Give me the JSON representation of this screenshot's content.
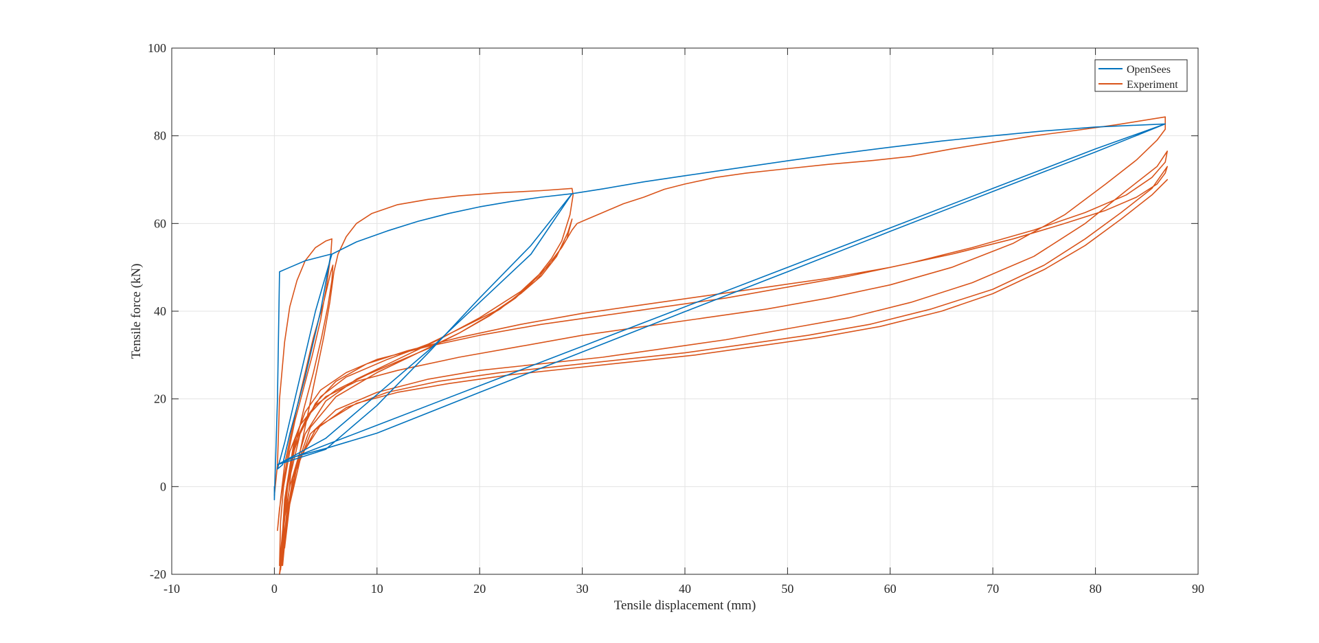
{
  "chart_data": {
    "type": "line",
    "title": "",
    "xlabel": "Tensile displacement (mm)",
    "ylabel": "Tensile force (kN)",
    "xlim": [
      -10,
      90
    ],
    "ylim": [
      -20,
      100
    ],
    "xticks": [
      -10,
      0,
      10,
      20,
      30,
      40,
      50,
      60,
      70,
      80,
      90
    ],
    "yticks": [
      -20,
      0,
      20,
      40,
      60,
      80,
      100
    ],
    "grid": true,
    "legend_position": "top-right",
    "series": [
      {
        "name": "OpenSees",
        "color": "#0072BD",
        "points": [
          [
            0,
            0
          ],
          [
            0,
            -3
          ],
          [
            0.3,
            20
          ],
          [
            0.5,
            49
          ],
          [
            1.5,
            50
          ],
          [
            3,
            51.5
          ],
          [
            5.5,
            53
          ],
          [
            4.5,
            40
          ],
          [
            3,
            25
          ],
          [
            1.5,
            12
          ],
          [
            0.8,
            5
          ],
          [
            0.3,
            4
          ],
          [
            1,
            10
          ],
          [
            2.5,
            25
          ],
          [
            4,
            40
          ],
          [
            5.6,
            53
          ],
          [
            8,
            55.8
          ],
          [
            11,
            58.3
          ],
          [
            14,
            60.5
          ],
          [
            17,
            62.3
          ],
          [
            20,
            63.8
          ],
          [
            23,
            65
          ],
          [
            26,
            66
          ],
          [
            29,
            66.8
          ],
          [
            25,
            55
          ],
          [
            20,
            43
          ],
          [
            15,
            30.5
          ],
          [
            10,
            18.5
          ],
          [
            5,
            8.5
          ],
          [
            1,
            5.5
          ],
          [
            0.3,
            5
          ],
          [
            5,
            11
          ],
          [
            10,
            21
          ],
          [
            15,
            31
          ],
          [
            20,
            42
          ],
          [
            25,
            53
          ],
          [
            29,
            66.8
          ],
          [
            32,
            67.9
          ],
          [
            36,
            69.5
          ],
          [
            40,
            70.9
          ],
          [
            45,
            72.6
          ],
          [
            50,
            74.3
          ],
          [
            55,
            75.9
          ],
          [
            60,
            77.4
          ],
          [
            65,
            78.8
          ],
          [
            70,
            80
          ],
          [
            75,
            81.1
          ],
          [
            80,
            82
          ],
          [
            86.8,
            82.7
          ],
          [
            80,
            76.3
          ],
          [
            70,
            67.3
          ],
          [
            60,
            58.2
          ],
          [
            50,
            49
          ],
          [
            40,
            39.9
          ],
          [
            30,
            30.7
          ],
          [
            20,
            21.5
          ],
          [
            10,
            12.2
          ],
          [
            5,
            8.7
          ],
          [
            2,
            6.8
          ],
          [
            0.3,
            5
          ],
          [
            2,
            6.8
          ],
          [
            10,
            14
          ],
          [
            20,
            23
          ],
          [
            30,
            32
          ],
          [
            40,
            41
          ],
          [
            50,
            50
          ],
          [
            60,
            59
          ],
          [
            70,
            68
          ],
          [
            80,
            77
          ],
          [
            86.8,
            82.7
          ]
        ]
      },
      {
        "name": "Experiment",
        "color": "#D95319",
        "points": [
          [
            0,
            -2
          ],
          [
            0.3,
            5
          ],
          [
            0.5,
            20
          ],
          [
            1,
            33
          ],
          [
            1.5,
            41
          ],
          [
            2.2,
            47
          ],
          [
            3,
            51.5
          ],
          [
            4,
            54.5
          ],
          [
            5,
            56
          ],
          [
            5.6,
            56.5
          ],
          [
            5.5,
            53
          ],
          [
            5.1,
            46
          ],
          [
            4.5,
            38
          ],
          [
            3.7,
            30
          ],
          [
            2.8,
            22
          ],
          [
            2,
            15
          ],
          [
            1.3,
            7
          ],
          [
            0.8,
            0
          ],
          [
            0.5,
            -5
          ],
          [
            0.3,
            -10
          ],
          [
            0.6,
            -3
          ],
          [
            1,
            5
          ],
          [
            1.8,
            14
          ],
          [
            2.8,
            24
          ],
          [
            3.8,
            34
          ],
          [
            4.8,
            42
          ],
          [
            5.5,
            49
          ],
          [
            5.7,
            50.5
          ],
          [
            5.6,
            47
          ],
          [
            5.2,
            41
          ],
          [
            4.6,
            34
          ],
          [
            3.8,
            26
          ],
          [
            2.9,
            18
          ],
          [
            2,
            9
          ],
          [
            1.3,
            0
          ],
          [
            0.8,
            -12
          ],
          [
            0.5,
            -20
          ],
          [
            0.8,
            -16
          ],
          [
            1.2,
            -8
          ],
          [
            1.8,
            0
          ],
          [
            2.5,
            8
          ],
          [
            3.3,
            17
          ],
          [
            4,
            25
          ],
          [
            4.8,
            34
          ],
          [
            5.4,
            42
          ],
          [
            5.8,
            49
          ],
          [
            6.2,
            53
          ],
          [
            7,
            57
          ],
          [
            8,
            60
          ],
          [
            9.5,
            62.3
          ],
          [
            12,
            64.3
          ],
          [
            15,
            65.5
          ],
          [
            18,
            66.3
          ],
          [
            22,
            67
          ],
          [
            26,
            67.5
          ],
          [
            29,
            68
          ],
          [
            29.1,
            66.5
          ],
          [
            28.8,
            62
          ],
          [
            28,
            56
          ],
          [
            27,
            52
          ],
          [
            25.5,
            47.5
          ],
          [
            23.5,
            43
          ],
          [
            21,
            39
          ],
          [
            18,
            35
          ],
          [
            15,
            31.5
          ],
          [
            12,
            28.5
          ],
          [
            9,
            25.5
          ],
          [
            6,
            22
          ],
          [
            4,
            18.5
          ],
          [
            2.5,
            14
          ],
          [
            1.5,
            8
          ],
          [
            0.9,
            0
          ],
          [
            0.6,
            -8
          ],
          [
            0.5,
            -18
          ],
          [
            0.8,
            -10
          ],
          [
            1.5,
            0
          ],
          [
            3,
            12
          ],
          [
            5,
            19.5
          ],
          [
            8,
            24.5
          ],
          [
            12,
            29
          ],
          [
            16,
            33.5
          ],
          [
            20,
            38.5
          ],
          [
            24,
            44.5
          ],
          [
            27,
            51
          ],
          [
            28.5,
            56.5
          ],
          [
            29,
            61
          ],
          [
            28.6,
            58
          ],
          [
            27.5,
            52.5
          ],
          [
            26,
            48
          ],
          [
            24,
            44
          ],
          [
            21.5,
            40
          ],
          [
            18.5,
            36.5
          ],
          [
            15,
            32.5
          ],
          [
            11,
            29
          ],
          [
            7,
            25
          ],
          [
            4.5,
            20.5
          ],
          [
            2.8,
            14
          ],
          [
            1.6,
            6
          ],
          [
            1,
            -3
          ],
          [
            0.7,
            -14
          ],
          [
            0.6,
            -19
          ],
          [
            1,
            -10
          ],
          [
            1.8,
            2
          ],
          [
            3.5,
            13.5
          ],
          [
            6,
            20.5
          ],
          [
            10,
            26
          ],
          [
            14,
            30.5
          ],
          [
            18,
            35
          ],
          [
            22,
            40.5
          ],
          [
            25.5,
            47
          ],
          [
            28,
            54.5
          ],
          [
            29,
            58.5
          ],
          [
            29.5,
            60
          ],
          [
            30.5,
            61
          ],
          [
            32,
            62.5
          ],
          [
            34,
            64.5
          ],
          [
            36,
            66
          ],
          [
            38,
            67.8
          ],
          [
            40,
            69
          ],
          [
            43,
            70.5
          ],
          [
            46,
            71.5
          ],
          [
            50,
            72.5
          ],
          [
            54,
            73.5
          ],
          [
            58,
            74.3
          ],
          [
            62,
            75.3
          ],
          [
            66,
            77
          ],
          [
            70,
            78.5
          ],
          [
            74,
            80
          ],
          [
            78,
            81.2
          ],
          [
            82,
            82.5
          ],
          [
            86.8,
            84.3
          ],
          [
            86.8,
            81.5
          ],
          [
            86,
            79
          ],
          [
            84,
            74.5
          ],
          [
            81,
            69
          ],
          [
            77,
            62
          ],
          [
            72,
            55.5
          ],
          [
            66,
            50
          ],
          [
            60,
            46
          ],
          [
            54,
            43
          ],
          [
            48,
            40.5
          ],
          [
            42,
            38.5
          ],
          [
            36,
            36.5
          ],
          [
            30,
            34.5
          ],
          [
            24,
            32
          ],
          [
            18,
            29.5
          ],
          [
            12,
            26.5
          ],
          [
            8,
            24
          ],
          [
            5,
            20.5
          ],
          [
            3.2,
            16
          ],
          [
            2,
            10
          ],
          [
            1.3,
            0
          ],
          [
            0.9,
            -10
          ],
          [
            0.8,
            -18
          ],
          [
            1.2,
            -8
          ],
          [
            2,
            3
          ],
          [
            3.5,
            12
          ],
          [
            6,
            17.5
          ],
          [
            10,
            21.5
          ],
          [
            15,
            24.5
          ],
          [
            20,
            26.5
          ],
          [
            26,
            28
          ],
          [
            32,
            29.5
          ],
          [
            38,
            31.5
          ],
          [
            44,
            33.5
          ],
          [
            50,
            36
          ],
          [
            56,
            38.5
          ],
          [
            62,
            42
          ],
          [
            68,
            46.5
          ],
          [
            74,
            52.5
          ],
          [
            79,
            60
          ],
          [
            83,
            67.5
          ],
          [
            86,
            73
          ],
          [
            87,
            76.5
          ],
          [
            86.8,
            74
          ],
          [
            85.5,
            70.5
          ],
          [
            83,
            66.5
          ],
          [
            79,
            62.5
          ],
          [
            74,
            58.5
          ],
          [
            68,
            54.5
          ],
          [
            62,
            51
          ],
          [
            56,
            48
          ],
          [
            50,
            45.5
          ],
          [
            44,
            43
          ],
          [
            38,
            41
          ],
          [
            32,
            39
          ],
          [
            26,
            37
          ],
          [
            20,
            34.5
          ],
          [
            15,
            32
          ],
          [
            10,
            29
          ],
          [
            7,
            26
          ],
          [
            4.5,
            22
          ],
          [
            3,
            17
          ],
          [
            1.9,
            10
          ],
          [
            1.2,
            0
          ],
          [
            0.8,
            -12
          ],
          [
            0.7,
            -18
          ],
          [
            1.2,
            -6
          ],
          [
            2.2,
            5
          ],
          [
            4,
            13
          ],
          [
            7,
            18
          ],
          [
            11,
            21.5
          ],
          [
            16,
            24
          ],
          [
            22,
            26
          ],
          [
            28,
            27.5
          ],
          [
            34,
            29
          ],
          [
            40,
            30.5
          ],
          [
            46,
            32.5
          ],
          [
            52,
            34.5
          ],
          [
            58,
            37
          ],
          [
            64,
            40.5
          ],
          [
            70,
            45
          ],
          [
            75,
            50.5
          ],
          [
            79,
            56.5
          ],
          [
            82.5,
            62.5
          ],
          [
            85.5,
            68
          ],
          [
            87,
            73
          ],
          [
            86.8,
            71.5
          ],
          [
            86,
            69
          ],
          [
            84,
            66
          ],
          [
            81,
            63
          ],
          [
            77,
            60
          ],
          [
            72,
            56.5
          ],
          [
            66,
            53
          ],
          [
            60,
            50
          ],
          [
            54,
            47.5
          ],
          [
            48,
            45.5
          ],
          [
            42,
            43.5
          ],
          [
            36,
            41.5
          ],
          [
            30,
            39.5
          ],
          [
            24,
            37
          ],
          [
            18,
            34
          ],
          [
            13,
            31
          ],
          [
            9,
            28
          ],
          [
            6,
            24
          ],
          [
            4,
            19
          ],
          [
            2.5,
            12
          ],
          [
            1.6,
            3
          ],
          [
            1.2,
            -6
          ],
          [
            1,
            -14
          ],
          [
            1.5,
            -4
          ],
          [
            2.6,
            7
          ],
          [
            4.5,
            14
          ],
          [
            8,
            19
          ],
          [
            12,
            21.5
          ],
          [
            17,
            23.5
          ],
          [
            23,
            25.5
          ],
          [
            29,
            27
          ],
          [
            35,
            28.5
          ],
          [
            41,
            30
          ],
          [
            47,
            32
          ],
          [
            53,
            34
          ],
          [
            59,
            36.5
          ],
          [
            65,
            40
          ],
          [
            70,
            44
          ],
          [
            75,
            49.5
          ],
          [
            79,
            55
          ],
          [
            82.5,
            61
          ],
          [
            85.5,
            66.5
          ],
          [
            87,
            70
          ]
        ]
      }
    ]
  }
}
